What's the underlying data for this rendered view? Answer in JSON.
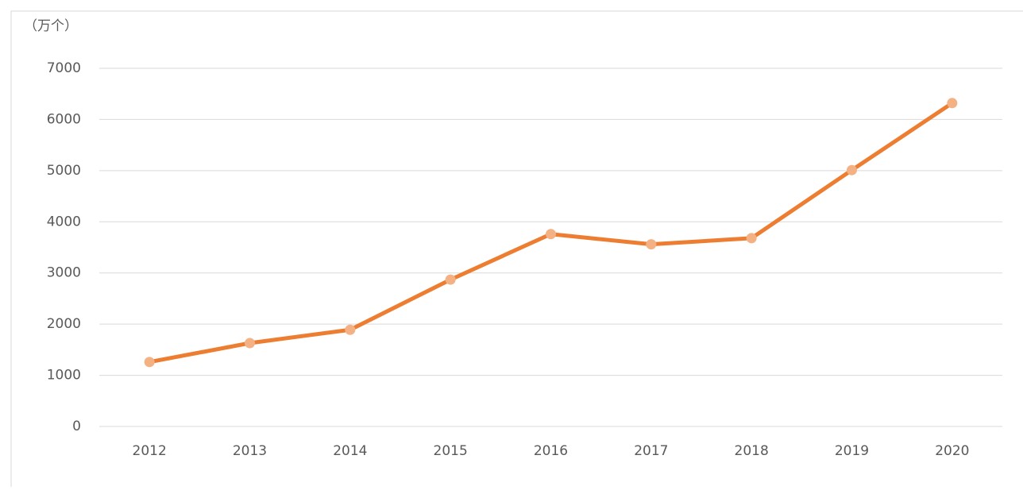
{
  "chart_data": {
    "type": "line",
    "y_axis_label": "（万个）",
    "categories": [
      "2012",
      "2013",
      "2014",
      "2015",
      "2016",
      "2017",
      "2018",
      "2019",
      "2020"
    ],
    "series": [
      {
        "color": "#ed7d31",
        "marker_color": "#f4b183",
        "values": [
          1260,
          1630,
          1890,
          2870,
          3760,
          3560,
          3680,
          5010,
          6320
        ]
      }
    ],
    "ylim": [
      0,
      7000
    ],
    "yticks": [
      0,
      1000,
      2000,
      3000,
      4000,
      5000,
      6000,
      7000
    ],
    "grid": true
  }
}
